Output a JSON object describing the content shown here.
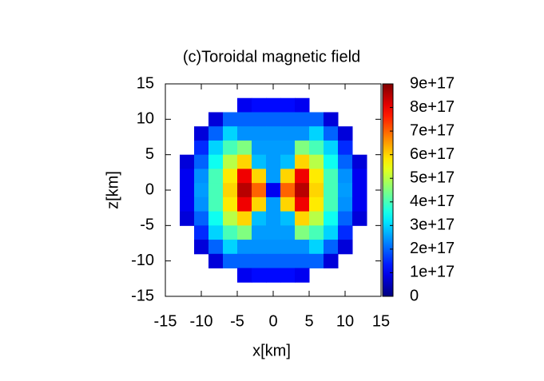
{
  "chart_data": {
    "type": "heatmap",
    "title": "(c)Toroidal magnetic field",
    "xlabel": "x[km]",
    "ylabel": "z[km]",
    "x": [
      -12,
      -10,
      -8,
      -6,
      -4,
      -2,
      0,
      2,
      4,
      6,
      8,
      10,
      12
    ],
    "y": [
      12,
      10,
      8,
      6,
      4,
      2,
      0,
      -2,
      -4,
      -6,
      -8,
      -10,
      -12
    ],
    "values": [
      [
        null,
        null,
        null,
        null,
        1e+17,
        1.2e+17,
        1.2e+17,
        1.2e+17,
        1e+17,
        null,
        null,
        null,
        null
      ],
      [
        null,
        null,
        8e+16,
        2e+17,
        2e+17,
        2e+17,
        2e+17,
        2e+17,
        2e+17,
        2e+17,
        8e+16,
        null,
        null
      ],
      [
        null,
        8e+16,
        2e+17,
        3e+17,
        2.4e+17,
        2.4e+17,
        2.4e+17,
        2.4e+17,
        2.4e+17,
        3e+17,
        2e+17,
        8e+16,
        null
      ],
      [
        null,
        1.5e+17,
        3e+17,
        4e+17,
        4.5e+17,
        2.5e+17,
        2.5e+17,
        2.5e+17,
        4.5e+17,
        4e+17,
        3e+17,
        1.5e+17,
        null
      ],
      [
        8e+16,
        2e+17,
        3.5e+17,
        5e+17,
        6e+17,
        2.8e+17,
        2.5e+17,
        2.8e+17,
        6e+17,
        5e+17,
        3.5e+17,
        2e+17,
        8e+16
      ],
      [
        1e+17,
        2.4e+17,
        4e+17,
        5.8e+17,
        8e+17,
        6e+17,
        2.5e+17,
        6e+17,
        8e+17,
        5.8e+17,
        4e+17,
        2.4e+17,
        1e+17
      ],
      [
        1e+17,
        2.5e+17,
        4e+17,
        6e+17,
        8.5e+17,
        7e+17,
        1e+17,
        7e+17,
        8.5e+17,
        6e+17,
        4e+17,
        2.5e+17,
        1e+17
      ],
      [
        1e+17,
        2.4e+17,
        4e+17,
        5.8e+17,
        8e+17,
        6e+17,
        2.5e+17,
        6e+17,
        8e+17,
        5.8e+17,
        4e+17,
        2.4e+17,
        1e+17
      ],
      [
        8e+16,
        2e+17,
        3.5e+17,
        5e+17,
        6e+17,
        2.8e+17,
        2.5e+17,
        2.8e+17,
        6e+17,
        5e+17,
        3.5e+17,
        2e+17,
        8e+16
      ],
      [
        null,
        1.5e+17,
        3e+17,
        4e+17,
        4.5e+17,
        2.5e+17,
        2.5e+17,
        2.5e+17,
        4.5e+17,
        4e+17,
        3e+17,
        1.5e+17,
        null
      ],
      [
        null,
        8e+16,
        2e+17,
        3e+17,
        2.4e+17,
        2.4e+17,
        2.4e+17,
        2.4e+17,
        2.4e+17,
        3e+17,
        2e+17,
        8e+16,
        null
      ],
      [
        null,
        null,
        8e+16,
        2e+17,
        2e+17,
        2e+17,
        2e+17,
        2e+17,
        2e+17,
        2e+17,
        8e+16,
        null,
        null
      ],
      [
        null,
        null,
        null,
        null,
        1e+17,
        1.2e+17,
        1.2e+17,
        1.2e+17,
        1e+17,
        null,
        null,
        null,
        null
      ]
    ],
    "xlim": [
      -15,
      15
    ],
    "ylim": [
      -15,
      15
    ],
    "xticks": [
      -15,
      -10,
      -5,
      0,
      5,
      10,
      15
    ],
    "yticks": [
      -15,
      -10,
      -5,
      0,
      5,
      10,
      15
    ],
    "colormap": "jet",
    "clim": [
      0,
      9e+17
    ],
    "cticks": [
      0,
      {
        "value": 1e+17,
        "label": "1e+17"
      },
      {
        "value": 2e+17,
        "label": "2e+17"
      },
      {
        "value": 3e+17,
        "label": "3e+17"
      },
      {
        "value": 4e+17,
        "label": "4e+17"
      },
      {
        "value": 5e+17,
        "label": "5e+17"
      },
      {
        "value": 6e+17,
        "label": "6e+17"
      },
      {
        "value": 7e+17,
        "label": "7e+17"
      },
      {
        "value": 8e+17,
        "label": "8e+17"
      },
      {
        "value": 9e+17,
        "label": "9e+17"
      }
    ]
  }
}
